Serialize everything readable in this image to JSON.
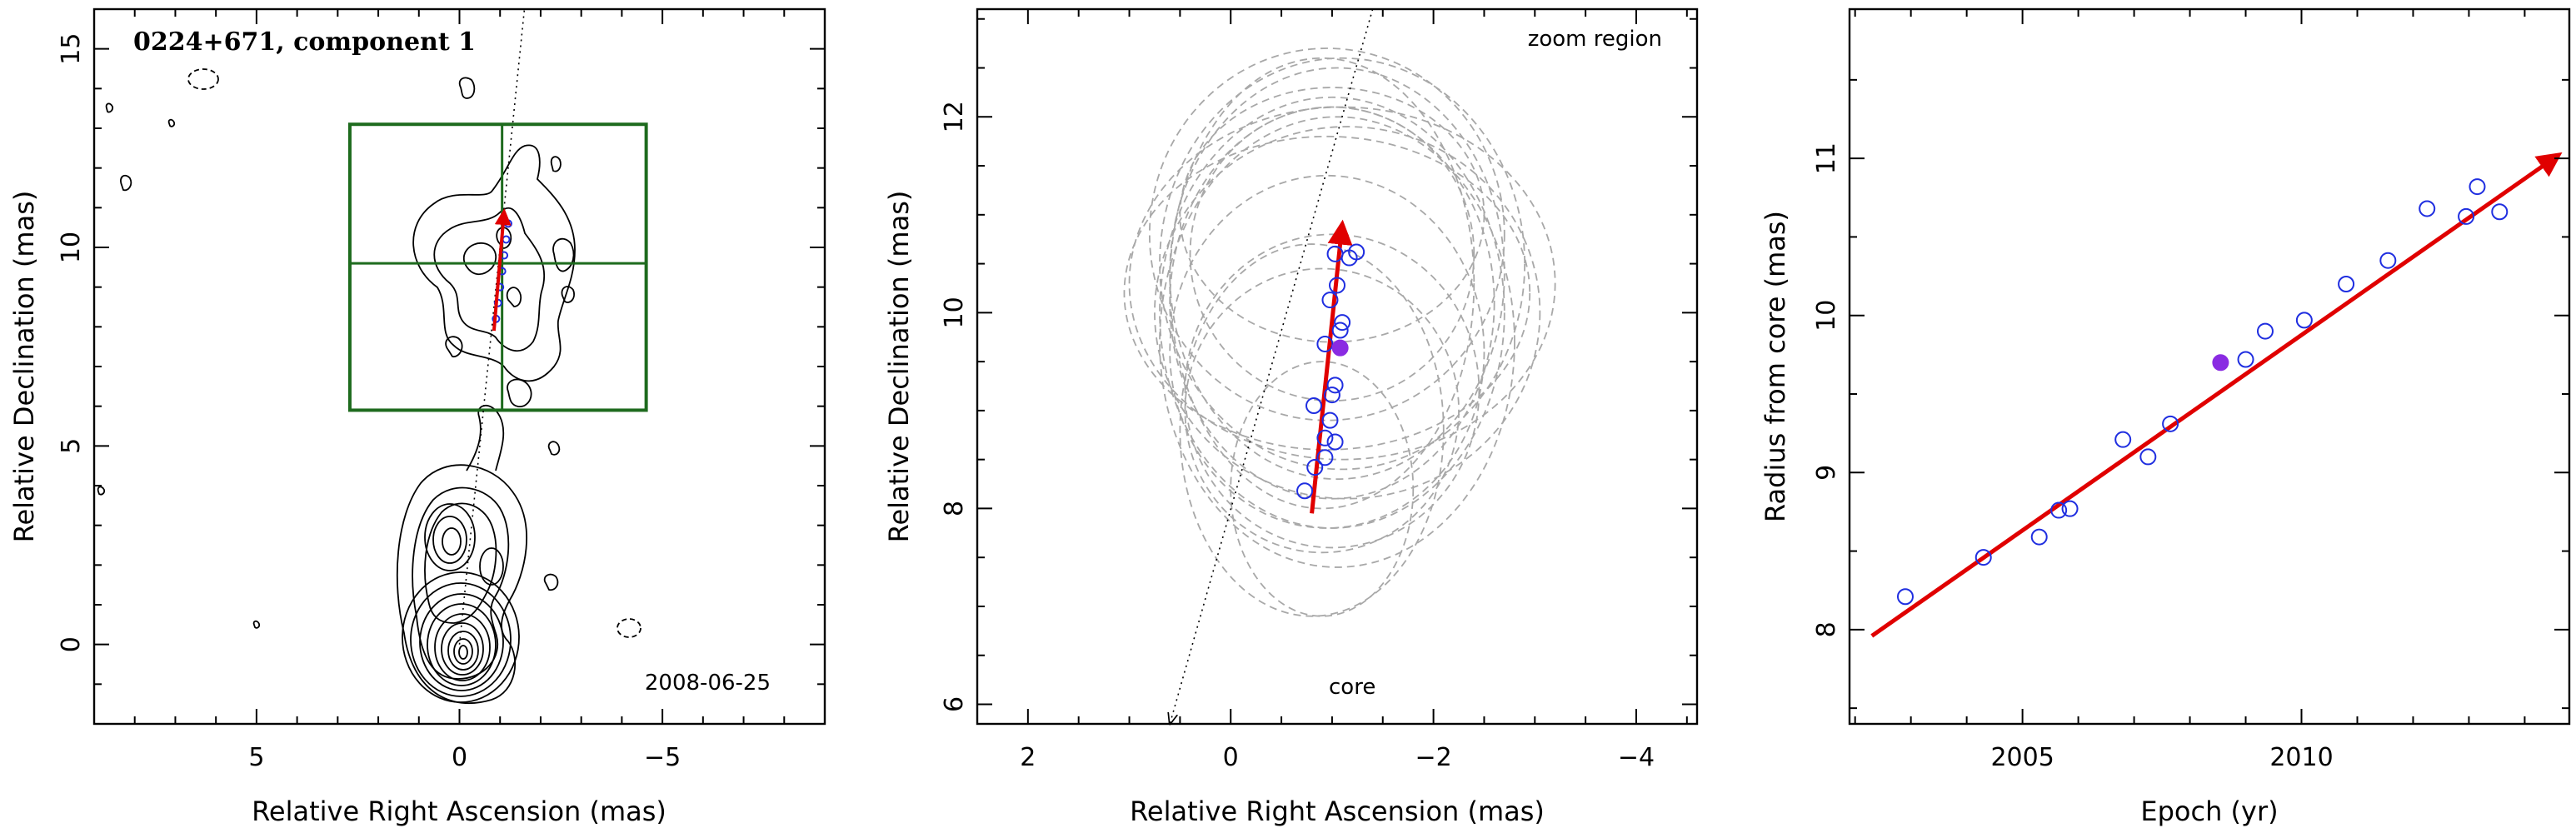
{
  "chart_data": [
    {
      "type": "contour",
      "title": "0224+671, component 1",
      "date_label": "2008-06-25",
      "xlabel": "Relative Right Ascension (mas)",
      "ylabel": "Relative Declination (mas)",
      "xlim": [
        9,
        -9
      ],
      "ylim": [
        -2,
        16
      ],
      "xticks": [
        5,
        0,
        -5
      ],
      "xtick_labels": [
        "5",
        "0",
        "−5"
      ],
      "yticks": [
        0,
        5,
        10,
        15
      ],
      "ytick_labels": [
        "0",
        "5",
        "10",
        "15"
      ],
      "zoom_box": {
        "x_range": [
          2.7,
          -4.6
        ],
        "y_range": [
          5.9,
          13.1
        ],
        "center": [
          -1.05,
          9.6
        ]
      },
      "trajectory_line": {
        "from": [
          0.0,
          0.0
        ],
        "to": [
          -1.6,
          16.0
        ]
      },
      "component_positions": [
        [
          -0.9,
          8.2
        ],
        [
          -0.95,
          8.6
        ],
        [
          -1.0,
          9.0
        ],
        [
          -1.05,
          9.4
        ],
        [
          -1.1,
          9.8
        ],
        [
          -1.15,
          10.2
        ],
        [
          -1.2,
          10.6
        ]
      ],
      "motion_vector": {
        "from": [
          -0.85,
          7.9
        ],
        "to": [
          -1.1,
          10.9
        ]
      }
    },
    {
      "type": "scatter",
      "annotation_top": "zoom region",
      "annotation_core": "core",
      "xlabel": "Relative Right Ascension (mas)",
      "ylabel": "Relative Declination (mas)",
      "xlim": [
        2.5,
        -4.6
      ],
      "ylim": [
        5.8,
        13.1
      ],
      "xticks": [
        2,
        0,
        -2,
        -4
      ],
      "xtick_labels": [
        "2",
        "0",
        "−2",
        "−4"
      ],
      "yticks": [
        6,
        8,
        10,
        12
      ],
      "ytick_labels": [
        "6",
        "8",
        "10",
        "12"
      ],
      "trajectory_line": {
        "from": [
          0.6,
          5.8
        ],
        "to": [
          -1.4,
          13.1
        ]
      },
      "points": [
        {
          "x": -0.73,
          "y": 8.18
        },
        {
          "x": -0.83,
          "y": 8.42
        },
        {
          "x": -0.93,
          "y": 8.52
        },
        {
          "x": -1.03,
          "y": 8.68
        },
        {
          "x": -0.93,
          "y": 8.72
        },
        {
          "x": -0.98,
          "y": 8.9
        },
        {
          "x": -0.82,
          "y": 9.05
        },
        {
          "x": -1.0,
          "y": 9.16
        },
        {
          "x": -1.03,
          "y": 9.26
        },
        {
          "x": -0.93,
          "y": 9.68
        },
        {
          "x": -1.08,
          "y": 9.82
        },
        {
          "x": -1.1,
          "y": 9.9
        },
        {
          "x": -0.98,
          "y": 10.13
        },
        {
          "x": -1.05,
          "y": 10.28
        },
        {
          "x": -1.03,
          "y": 10.6
        },
        {
          "x": -1.17,
          "y": 10.56
        },
        {
          "x": -1.24,
          "y": 10.62
        }
      ],
      "highlight_point": {
        "x": -1.08,
        "y": 9.64
      },
      "motion_vector": {
        "from": [
          -0.8,
          7.95
        ],
        "to": [
          -1.1,
          10.9
        ]
      },
      "beam_ellipses": [
        {
          "cx": -1.0,
          "cy": 10.0,
          "rx": 1.7,
          "ry": 2.2
        },
        {
          "cx": -1.05,
          "cy": 9.7,
          "rx": 1.75,
          "ry": 2.3
        },
        {
          "cx": -1.05,
          "cy": 10.4,
          "rx": 1.65,
          "ry": 2.1
        },
        {
          "cx": -0.95,
          "cy": 10.2,
          "rx": 2.0,
          "ry": 1.6
        },
        {
          "cx": -0.9,
          "cy": 10.3,
          "rx": 1.5,
          "ry": 2.3
        },
        {
          "cx": -1.1,
          "cy": 10.5,
          "rx": 1.8,
          "ry": 2.1
        },
        {
          "cx": -1.0,
          "cy": 10.6,
          "rx": 1.4,
          "ry": 1.5
        },
        {
          "cx": -1.0,
          "cy": 10.1,
          "rx": 1.6,
          "ry": 2.0
        },
        {
          "cx": -1.15,
          "cy": 10.0,
          "rx": 1.9,
          "ry": 1.9
        },
        {
          "cx": -0.95,
          "cy": 9.6,
          "rx": 1.55,
          "ry": 1.8
        },
        {
          "cx": -1.0,
          "cy": 9.2,
          "rx": 1.45,
          "ry": 1.6
        },
        {
          "cx": -0.8,
          "cy": 8.8,
          "rx": 1.3,
          "ry": 1.9
        },
        {
          "cx": -0.9,
          "cy": 8.2,
          "rx": 0.9,
          "ry": 1.3
        },
        {
          "cx": -1.0,
          "cy": 11.0,
          "rx": 1.5,
          "ry": 1.3
        },
        {
          "cx": -1.1,
          "cy": 10.3,
          "rx": 2.1,
          "ry": 1.8
        },
        {
          "cx": -0.9,
          "cy": 9.0,
          "rx": 1.35,
          "ry": 1.45
        },
        {
          "cx": -0.95,
          "cy": 10.8,
          "rx": 1.75,
          "ry": 1.9
        }
      ]
    },
    {
      "type": "scatter",
      "xlabel": "Epoch (yr)",
      "ylabel": "Radius from core (mas)",
      "xlim": [
        2001.9,
        2014.8
      ],
      "ylim": [
        7.4,
        11.95
      ],
      "xticks": [
        2005,
        2010
      ],
      "xtick_labels": [
        "2005",
        "2010"
      ],
      "yticks": [
        8,
        9,
        10,
        11
      ],
      "ytick_labels": [
        "8",
        "9",
        "10",
        "11"
      ],
      "points": [
        {
          "x": 2002.9,
          "y": 8.21
        },
        {
          "x": 2004.3,
          "y": 8.46
        },
        {
          "x": 2005.3,
          "y": 8.59
        },
        {
          "x": 2005.65,
          "y": 8.76
        },
        {
          "x": 2005.85,
          "y": 8.77
        },
        {
          "x": 2006.8,
          "y": 9.21
        },
        {
          "x": 2007.25,
          "y": 9.1
        },
        {
          "x": 2007.65,
          "y": 9.31
        },
        {
          "x": 2009.0,
          "y": 9.72
        },
        {
          "x": 2009.35,
          "y": 9.9
        },
        {
          "x": 2010.05,
          "y": 9.97
        },
        {
          "x": 2010.8,
          "y": 10.2
        },
        {
          "x": 2011.55,
          "y": 10.35
        },
        {
          "x": 2012.25,
          "y": 10.68
        },
        {
          "x": 2012.95,
          "y": 10.63
        },
        {
          "x": 2013.15,
          "y": 10.82
        },
        {
          "x": 2013.55,
          "y": 10.66
        }
      ],
      "highlight_point": {
        "x": 2008.55,
        "y": 9.7
      },
      "fit_line": {
        "x": [
          2002.3,
          2014.6
        ],
        "y": [
          7.96,
          11.02
        ]
      }
    }
  ]
}
